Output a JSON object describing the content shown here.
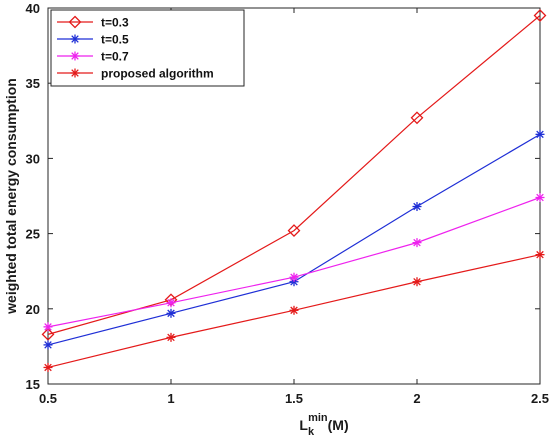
{
  "chart_data": {
    "type": "line",
    "xlabel": {
      "main": "L",
      "sub": "k",
      "sup": "min",
      "suffix": "(M)"
    },
    "ylabel": "weighted total energy consumption",
    "xlim": [
      0.5,
      2.5
    ],
    "ylim": [
      15,
      40
    ],
    "xticks": [
      0.5,
      1,
      1.5,
      2,
      2.5
    ],
    "xtick_labels": [
      "0.5",
      "1",
      "1.5",
      "2",
      "2.5"
    ],
    "yticks": [
      15,
      20,
      25,
      30,
      35,
      40
    ],
    "ytick_labels": [
      "15",
      "20",
      "25",
      "30",
      "35",
      "40"
    ],
    "grid": false,
    "legend_position": "top-left",
    "x": [
      0.5,
      1,
      1.5,
      2,
      2.5
    ],
    "series": [
      {
        "name": "t=0.3",
        "color": "#e41a1a",
        "marker": "diamond",
        "values": [
          18.3,
          20.6,
          25.2,
          32.7,
          39.5
        ]
      },
      {
        "name": "t=0.5",
        "color": "#1f2fd6",
        "marker": "asterisk",
        "values": [
          17.6,
          19.7,
          21.8,
          26.8,
          31.6
        ]
      },
      {
        "name": "t=0.7",
        "color": "#ee22ee",
        "marker": "asterisk",
        "values": [
          18.8,
          20.4,
          22.1,
          24.4,
          27.4
        ]
      },
      {
        "name": "proposed algorithm",
        "color": "#e41a1a",
        "marker": "asterisk",
        "values": [
          16.1,
          18.1,
          19.9,
          21.8,
          23.6
        ]
      }
    ]
  }
}
